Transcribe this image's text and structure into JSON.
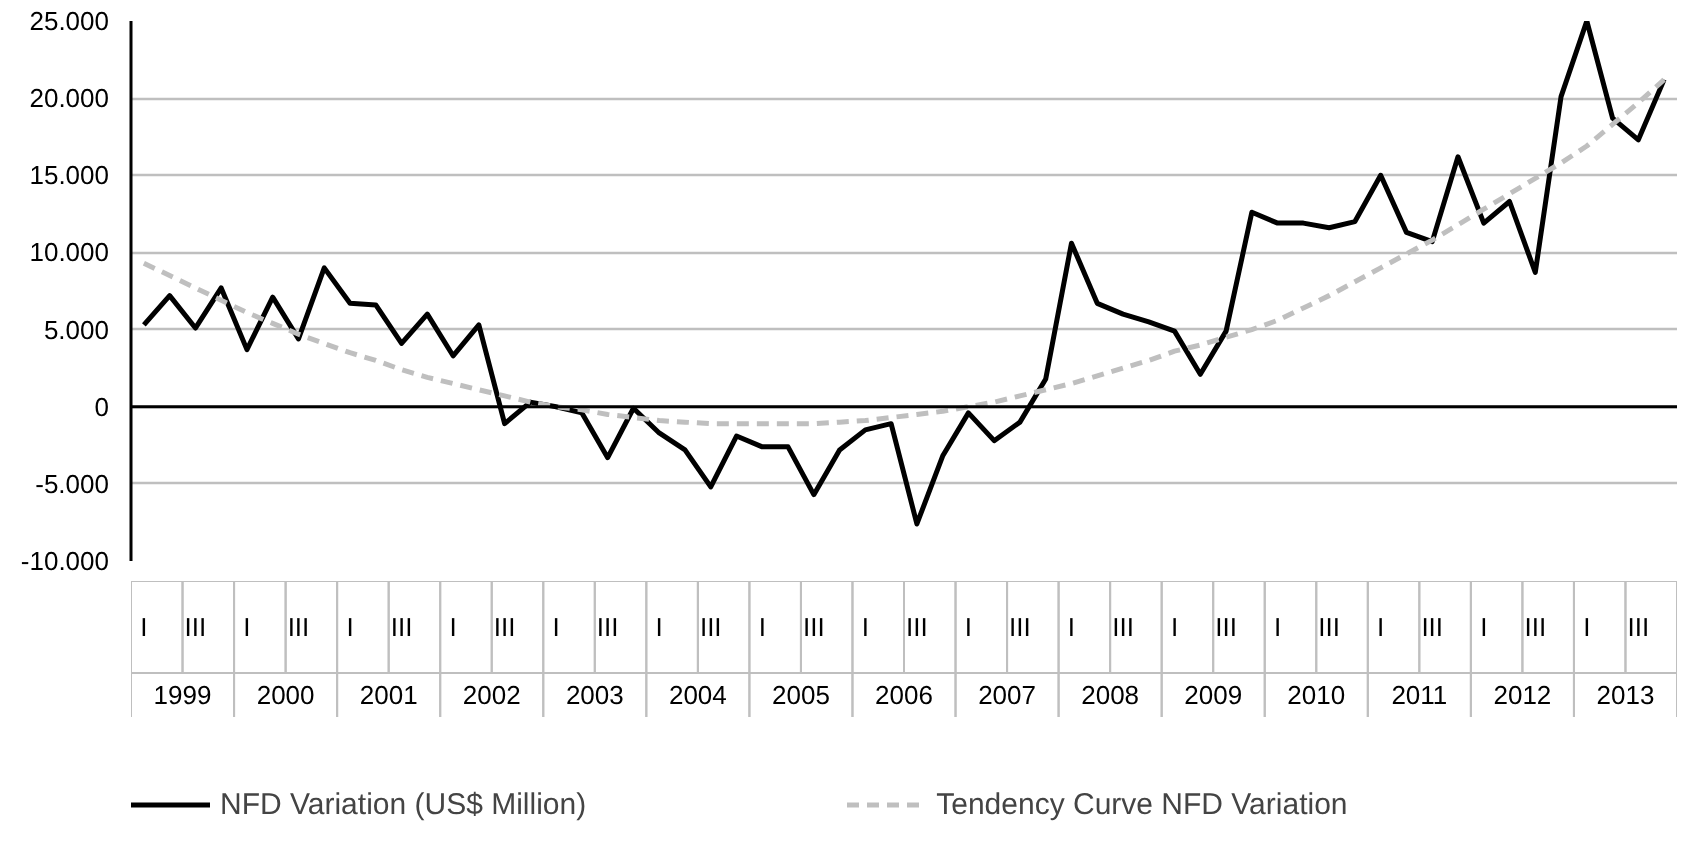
{
  "chart_data": {
    "type": "line",
    "categories": [
      "I",
      null,
      "III",
      null,
      "I",
      null,
      "III",
      null,
      "I",
      null,
      "III",
      null,
      "I",
      null,
      "III",
      null,
      "I",
      null,
      "III",
      null,
      "I",
      null,
      "III",
      null,
      "I",
      null,
      "III",
      null,
      "I",
      null,
      "III",
      null,
      "I",
      null,
      "III",
      null,
      "I",
      null,
      "III",
      null,
      "I",
      null,
      "III",
      null,
      "I",
      null,
      "III",
      null,
      "I",
      null,
      "III",
      null,
      "I",
      null,
      "III",
      null,
      "I",
      null,
      "III",
      null
    ],
    "series": [
      {
        "name": "NFD Variation (US$ Million)",
        "color": "#000000",
        "line_style": "solid",
        "values": [
          5300,
          7200,
          5100,
          7700,
          3700,
          7100,
          4400,
          9000,
          6700,
          6600,
          4100,
          6000,
          3300,
          5300,
          -1100,
          300,
          0,
          -400,
          -3300,
          -100,
          -1700,
          -2800,
          -5200,
          -1900,
          -2600,
          -2600,
          -5700,
          -2800,
          -1500,
          -1100,
          -7600,
          -3200,
          -400,
          -2200,
          -1000,
          1800,
          10600,
          6700,
          6000,
          5500,
          4900,
          2100,
          4900,
          12600,
          11900,
          11900,
          11600,
          12000,
          15000,
          11300,
          10700,
          16200,
          11900,
          13300,
          8700,
          20100,
          25000,
          18700,
          17300,
          21200
        ]
      },
      {
        "name": "Tendency Curve NFD Variation",
        "color": "#bfbfbf",
        "line_style": "dashed",
        "values": [
          9300,
          8500,
          7700,
          6900,
          6100,
          5400,
          4700,
          4100,
          3500,
          3000,
          2400,
          1900,
          1500,
          1100,
          700,
          300,
          0,
          -200,
          -500,
          -700,
          -900,
          -1000,
          -1100,
          -1100,
          -1100,
          -1100,
          -1100,
          -1000,
          -900,
          -700,
          -500,
          -300,
          0,
          300,
          700,
          1100,
          1500,
          2000,
          2500,
          3000,
          3600,
          4000,
          4500,
          5000,
          5600,
          6400,
          7200,
          8100,
          9000,
          9900,
          10800,
          11800,
          12800,
          13800,
          14800,
          15800,
          16900,
          18300,
          19700,
          21200
        ]
      }
    ],
    "annotations": [
      "1999",
      "2000",
      "2001",
      "2002",
      "2003",
      "2004",
      "2005",
      "2006",
      "2007",
      "2008",
      "2009",
      "2010",
      "2011",
      "2012",
      "2013"
    ],
    "ylim": [
      -10000,
      25000
    ],
    "yticks": [
      {
        "value": -10000,
        "label": "-10.000"
      },
      {
        "value": -5000,
        "label": "-5.000"
      },
      {
        "value": 0,
        "label": "0"
      },
      {
        "value": 5000,
        "label": "5.000"
      },
      {
        "value": 10000,
        "label": "10.000"
      },
      {
        "value": 15000,
        "label": "15.000"
      },
      {
        "value": 20000,
        "label": "20.000"
      },
      {
        "value": 25000,
        "label": "25.000"
      }
    ],
    "ref_lines": [
      {
        "axis": "y",
        "value": 0,
        "color": "#000000"
      }
    ],
    "grid": "y",
    "legend": "bottom"
  }
}
